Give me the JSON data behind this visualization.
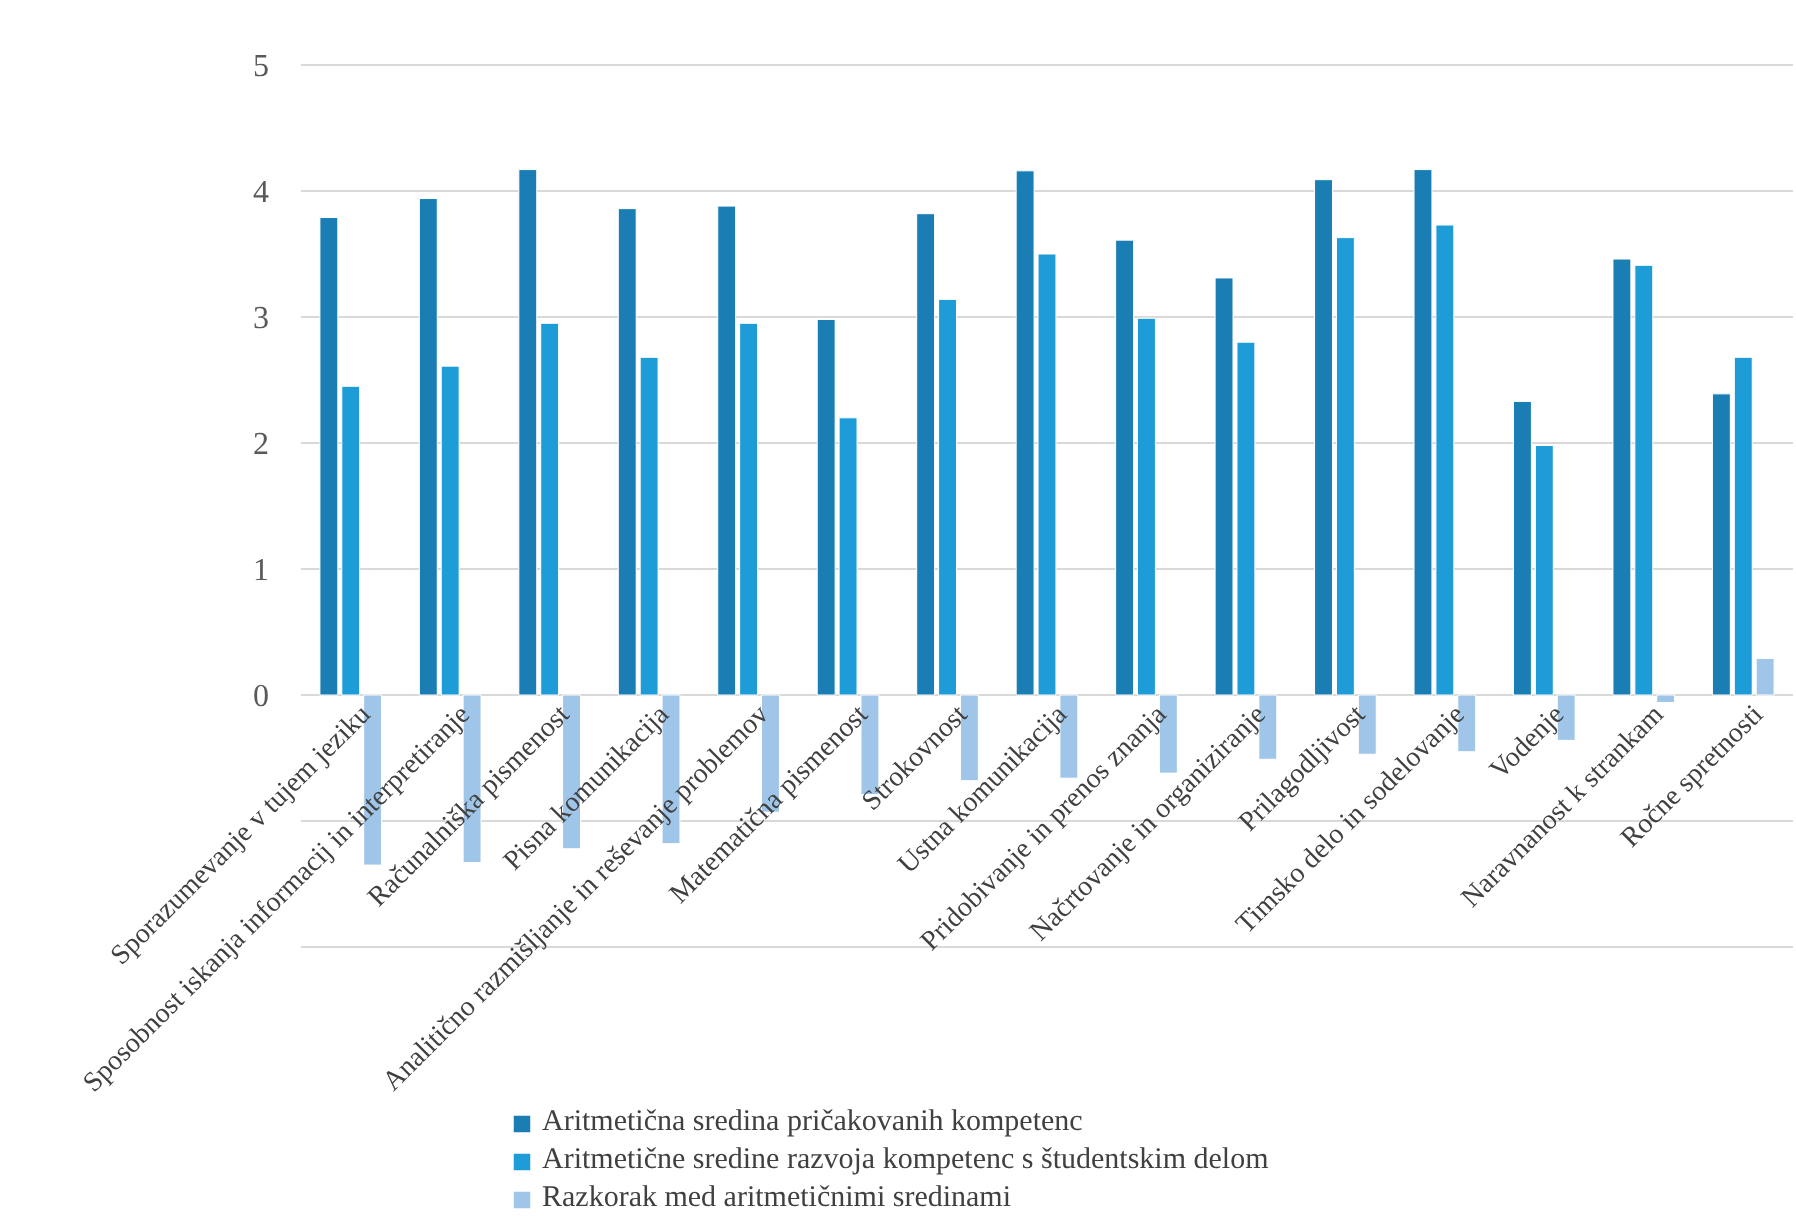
{
  "chart_data": {
    "type": "bar",
    "categories": [
      "Sporazumevanje v tujem jeziku",
      "Sposobnost iskanja informacij in interpretiranje",
      "Računalniška pismenost",
      "Pisna komunikacija",
      "Analitično razmišljanje in reševanje problemov",
      "Matematična pismenost",
      "Strokovnost",
      "Ustna komunikacija",
      "Pridobivanje in prenos znanja",
      "Načrtovanje in organiziranje",
      "Prilagodljivost",
      "Timsko delo in sodelovanje",
      "Vodenje",
      "Naravnanost k strankam",
      "Ročne spretnosti"
    ],
    "series": [
      {
        "name": "Aritmetična sredina pričakovanih kompetenc",
        "color": "#1a7db3",
        "values": [
          3.79,
          3.94,
          4.17,
          3.86,
          3.88,
          2.98,
          3.82,
          4.16,
          3.61,
          3.31,
          4.09,
          4.17,
          2.33,
          3.46,
          2.39
        ]
      },
      {
        "name": "Aritmetične sredine razvoja kompetenc s študentskim delom",
        "color": "#1e9cd7",
        "values": [
          2.45,
          2.61,
          2.95,
          2.68,
          2.95,
          2.2,
          3.14,
          3.5,
          2.99,
          2.8,
          3.63,
          3.73,
          1.98,
          3.41,
          2.68
        ]
      },
      {
        "name": "Razkorak med aritmetičnimi sredinami",
        "color": "#9fc5e8",
        "values": [
          -1.35,
          -1.33,
          -1.22,
          -1.18,
          -0.93,
          -0.79,
          -0.68,
          -0.66,
          -0.62,
          -0.51,
          -0.47,
          -0.45,
          -0.36,
          -0.06,
          0.29
        ]
      }
    ],
    "ylim": [
      -2,
      5
    ],
    "yticks": [
      {
        "value": -2,
        "label": null
      },
      {
        "value": -1,
        "label": null
      },
      0,
      1,
      2,
      3,
      4,
      5
    ],
    "grid": "y",
    "legend": "bottom"
  }
}
